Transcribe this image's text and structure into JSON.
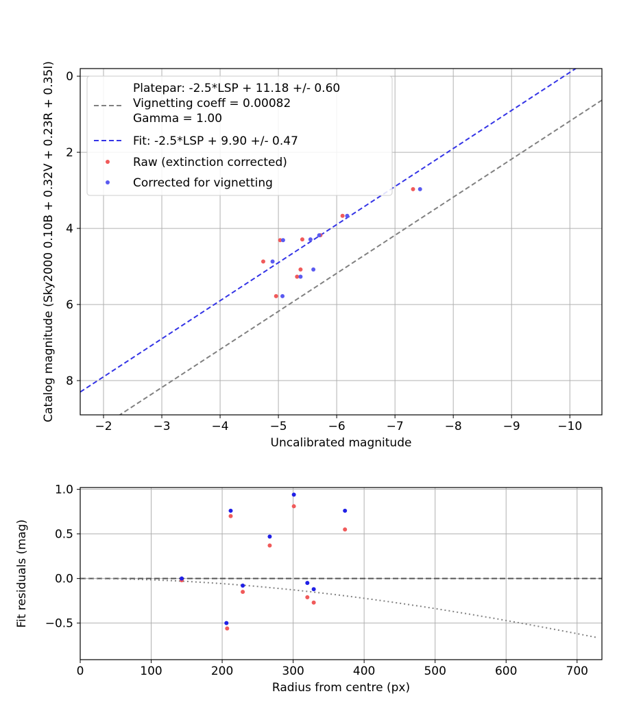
{
  "chart_data": [
    {
      "type": "scatter",
      "xlabel": "Uncalibrated magnitude",
      "ylabel": "Catalog magnitude (Sky2000 0.10B + 0.32V + 0.23R + 0.35I)",
      "xlim": [
        -1.6,
        -10.55
      ],
      "ylim": [
        8.9,
        -0.2
      ],
      "x_inverted": true,
      "y_inverted": true,
      "grid": true,
      "legend_position": "top-left",
      "xticks": [
        -2,
        -3,
        -4,
        -5,
        -6,
        -7,
        -8,
        -9,
        -10
      ],
      "xtick_labels": [
        "−2",
        "−3",
        "−4",
        "−5",
        "−6",
        "−7",
        "−8",
        "−9",
        "−10"
      ],
      "yticks": [
        0,
        2,
        4,
        6,
        8
      ],
      "ytick_labels": [
        "0",
        "2",
        "4",
        "6",
        "8"
      ],
      "lines": [
        {
          "name_lines": [
            "Platepar: -2.5*LSP + 11.18 +/- 0.60",
            "Vignetting coeff = 0.00082",
            "Gamma = 1.00"
          ],
          "style": "dashed",
          "color": "#808080",
          "slope": 1,
          "intercept": 11.18
        },
        {
          "name_lines": [
            "Fit: -2.5*LSP + 9.90 +/- 0.47"
          ],
          "style": "dashed",
          "color": "#3333e6",
          "slope": 1,
          "intercept": 9.9
        }
      ],
      "series": [
        {
          "name": "Raw (extinction corrected)",
          "color": "#f05a5a",
          "x": [
            -7.31,
            -6.1,
            -5.72,
            -5.41,
            -5.38,
            -5.03,
            -4.74,
            -5.32,
            -4.96
          ],
          "y": [
            2.97,
            3.67,
            4.18,
            4.29,
            5.08,
            4.31,
            4.87,
            5.27,
            5.78
          ]
        },
        {
          "name": "Corrected for vignetting",
          "color": "#5a5af0",
          "x": [
            -7.43,
            -6.18,
            -5.7,
            -5.55,
            -5.6,
            -5.08,
            -4.9,
            -5.38,
            -5.07
          ],
          "y": [
            2.97,
            3.67,
            4.18,
            4.29,
            5.08,
            4.31,
            4.87,
            5.27,
            5.78
          ]
        }
      ]
    },
    {
      "type": "scatter",
      "xlabel": "Radius from centre (px)",
      "ylabel": "Fit residuals (mag)",
      "xlim": [
        0,
        735
      ],
      "ylim": [
        -0.91,
        1.02
      ],
      "grid": true,
      "xticks": [
        0,
        100,
        200,
        300,
        400,
        500,
        600,
        700
      ],
      "xtick_labels": [
        "0",
        "100",
        "200",
        "300",
        "400",
        "500",
        "600",
        "700"
      ],
      "yticks": [
        -0.5,
        0,
        0.5,
        1.0
      ],
      "ytick_labels": [
        "−0.5",
        "0.0",
        "0.5",
        "1.0"
      ],
      "zero_line": {
        "style": "dashed",
        "color": "#555555",
        "y": 0
      },
      "vignetting_curve": {
        "style": "dotted",
        "color": "#808080",
        "coeff": 0.00082,
        "x_max": 730
      },
      "series": [
        {
          "name": "Raw (extinction corrected)",
          "color": "#f05a5a",
          "x": [
            143,
            207,
            212,
            229,
            267,
            301,
            320,
            329,
            373
          ],
          "y": [
            -0.02,
            -0.56,
            0.7,
            -0.15,
            0.37,
            0.81,
            -0.21,
            -0.27,
            0.55
          ]
        },
        {
          "name": "Corrected for vignetting",
          "color": "#2020e6",
          "x": [
            143,
            206,
            212,
            229,
            267,
            301,
            320,
            329,
            373
          ],
          "y": [
            0.0,
            -0.5,
            0.76,
            -0.08,
            0.47,
            0.94,
            -0.05,
            -0.12,
            0.76
          ]
        }
      ]
    }
  ]
}
